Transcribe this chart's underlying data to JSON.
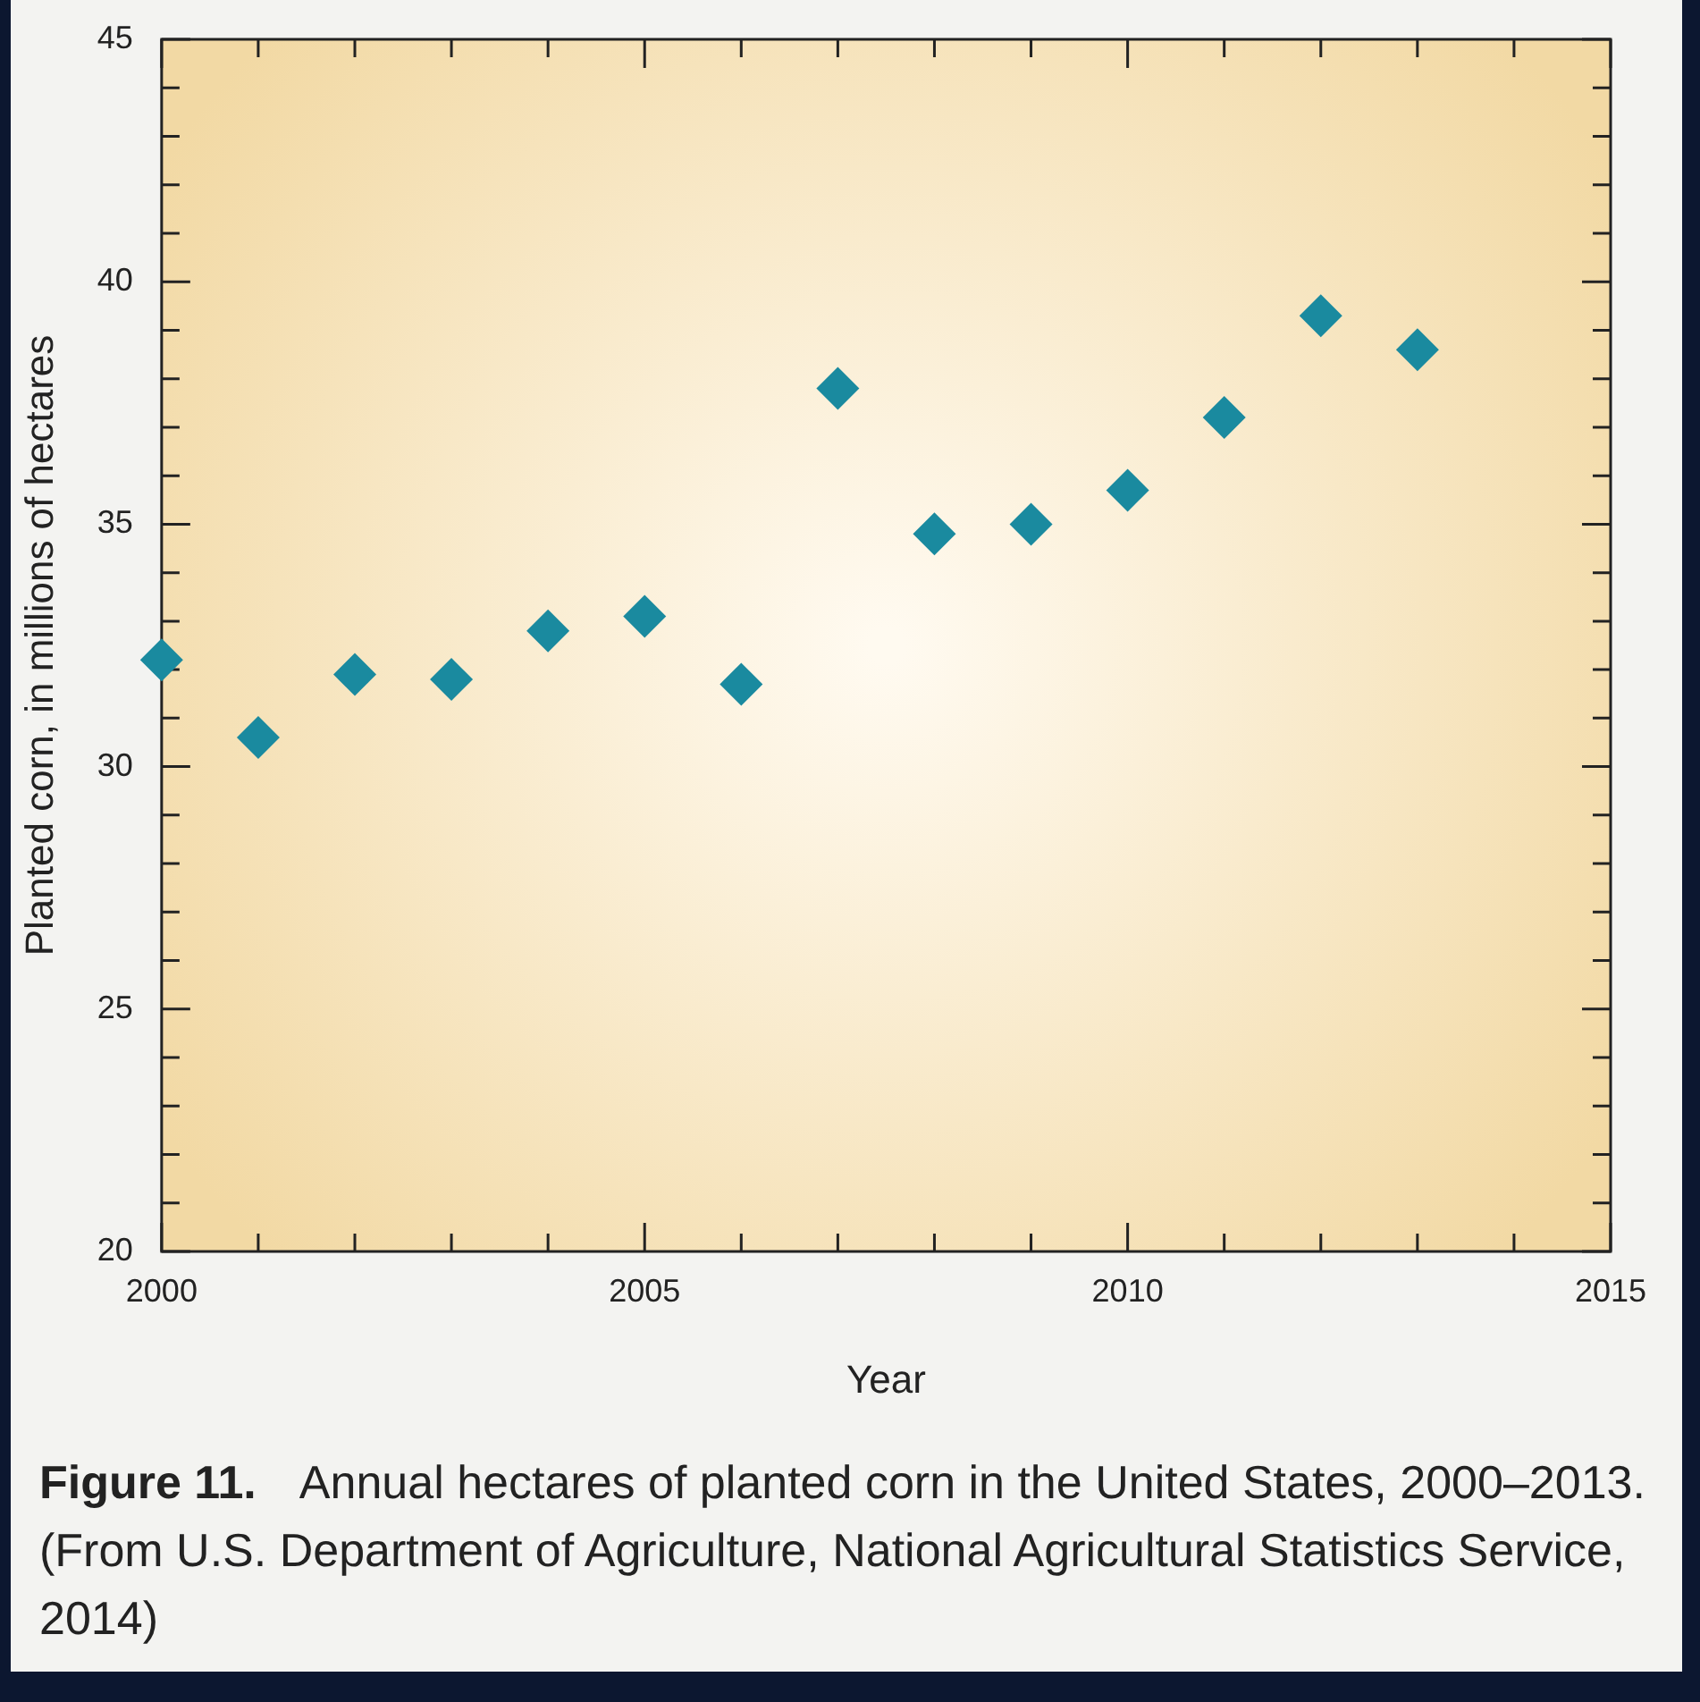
{
  "chart_data": {
    "type": "scatter",
    "xlabel": "Year",
    "ylabel": "Planted corn, in millions of hectares",
    "x": [
      2000,
      2001,
      2002,
      2003,
      2004,
      2005,
      2006,
      2007,
      2008,
      2009,
      2010,
      2011,
      2012,
      2013
    ],
    "series": [
      {
        "color": "#1a8a9f",
        "values": [
          32.2,
          30.6,
          31.9,
          31.8,
          32.8,
          33.1,
          31.7,
          37.8,
          34.8,
          35.0,
          35.7,
          37.2,
          39.3,
          38.6
        ]
      }
    ],
    "marker": "diamond",
    "xlim": [
      2000,
      2015
    ],
    "xticks": [
      2000,
      {
        "value": 2001,
        "label": null
      },
      {
        "value": 2002,
        "label": null
      },
      {
        "value": 2003,
        "label": null
      },
      {
        "value": 2004,
        "label": null
      },
      2005,
      {
        "value": 2006,
        "label": null
      },
      {
        "value": 2007,
        "label": null
      },
      {
        "value": 2008,
        "label": null
      },
      {
        "value": 2009,
        "label": null
      },
      2010,
      {
        "value": 2011,
        "label": null
      },
      {
        "value": 2012,
        "label": null
      },
      {
        "value": 2013,
        "label": null
      },
      {
        "value": 2014,
        "label": null
      },
      2015
    ],
    "ylim": [
      20,
      45
    ],
    "yticks": [
      20,
      {
        "value": 21,
        "label": null
      },
      {
        "value": 22,
        "label": null
      },
      {
        "value": 23,
        "label": null
      },
      {
        "value": 24,
        "label": null
      },
      25,
      {
        "value": 26,
        "label": null
      },
      {
        "value": 27,
        "label": null
      },
      {
        "value": 28,
        "label": null
      },
      {
        "value": 29,
        "label": null
      },
      30,
      {
        "value": 31,
        "label": null
      },
      {
        "value": 32,
        "label": null
      },
      {
        "value": 33,
        "label": null
      },
      {
        "value": 34,
        "label": null
      },
      35,
      {
        "value": 36,
        "label": null
      },
      {
        "value": 37,
        "label": null
      },
      {
        "value": 38,
        "label": null
      },
      {
        "value": 39,
        "label": null
      },
      40,
      {
        "value": 41,
        "label": null
      },
      {
        "value": 42,
        "label": null
      },
      {
        "value": 43,
        "label": null
      },
      {
        "value": 44,
        "label": null
      },
      45
    ],
    "annotations": [
      "Figure 11.",
      "Annual hectares of planted corn in the United States, 2000–2013. (From U.S. Department of Agriculture, National Agricultural Statistics Service, 2014)"
    ]
  }
}
